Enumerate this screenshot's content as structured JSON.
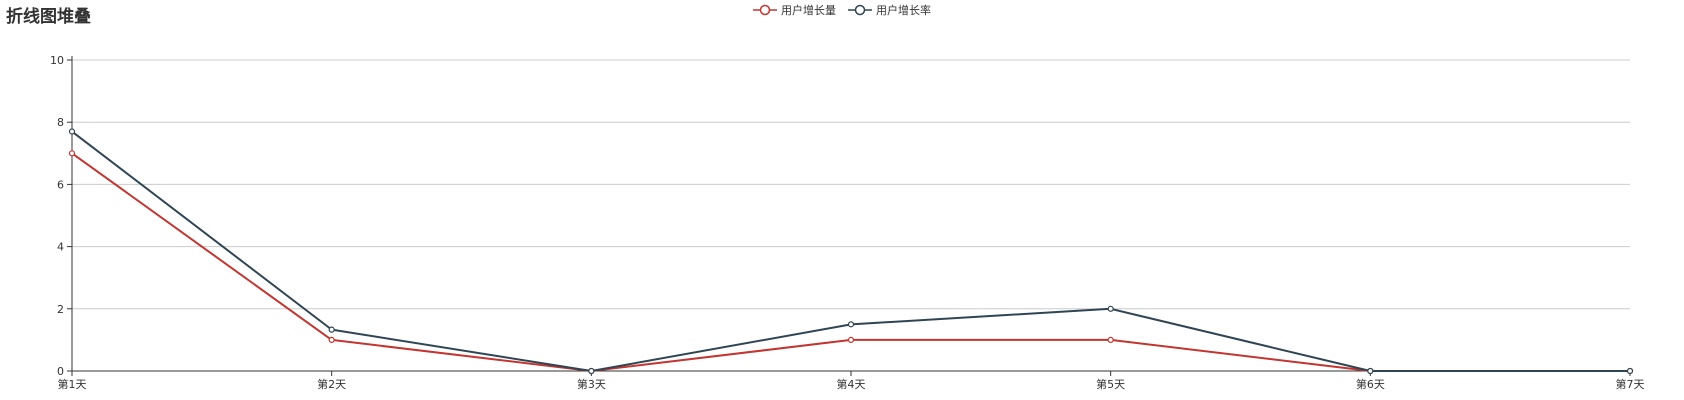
{
  "chart_data": {
    "type": "line",
    "title": "折线图堆叠",
    "categories": [
      "第1天",
      "第2天",
      "第3天",
      "第4天",
      "第5天",
      "第6天",
      "第7天"
    ],
    "ylim": [
      0,
      10
    ],
    "yticks": [
      0,
      2,
      4,
      6,
      8,
      10
    ],
    "grid": true,
    "legend_position": "top-center",
    "series": [
      {
        "name": "用户增长量",
        "color": "#c23531",
        "values": [
          7,
          1,
          0,
          1,
          1,
          0,
          0
        ]
      },
      {
        "name": "用户增长率",
        "color": "#2f4554",
        "values": [
          0.7,
          0.33,
          0,
          0.5,
          1,
          0,
          0
        ]
      }
    ],
    "stacked": true
  }
}
